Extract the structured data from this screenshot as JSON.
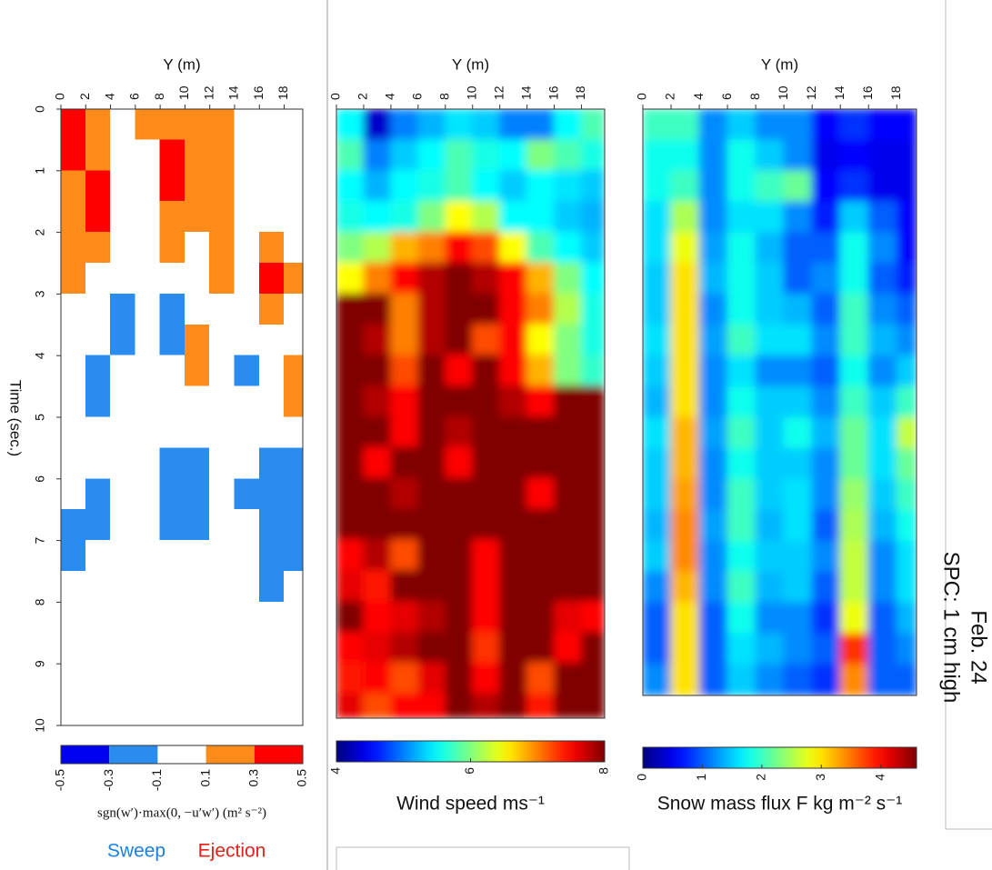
{
  "chart_data": [
    {
      "type": "heatmap",
      "xlabel": "Y (m)",
      "ylabel": "Time (sec.)",
      "x": [
        0,
        2,
        4,
        6,
        8,
        10,
        12,
        14,
        16,
        18
      ],
      "y": [
        0,
        0.5,
        1,
        1.5,
        2,
        2.5,
        3,
        3.5,
        4,
        4.5,
        5,
        5.5,
        6,
        6.5,
        7,
        7.5,
        8,
        8.5,
        9,
        9.5
      ],
      "xlim": [
        0,
        19.5
      ],
      "ylim": [
        0,
        10
      ],
      "xticks": [
        0,
        2,
        4,
        6,
        8,
        10,
        12,
        14,
        16,
        18
      ],
      "yticks": [
        0,
        1,
        2,
        3,
        4,
        5,
        6,
        7,
        8,
        9,
        10
      ],
      "z": [
        [
          0.4,
          0.2,
          0,
          0.2,
          0.2,
          0.2,
          0.2,
          0,
          0,
          0
        ],
        [
          0.4,
          0.2,
          0,
          0,
          0.4,
          0.2,
          0.2,
          0,
          0,
          0
        ],
        [
          0.2,
          0.4,
          0,
          0,
          0.4,
          0.2,
          0.2,
          0,
          0,
          0
        ],
        [
          0.2,
          0.4,
          0,
          0,
          0.2,
          0.2,
          0.2,
          0,
          0,
          0
        ],
        [
          0.2,
          0.2,
          0,
          0,
          0.2,
          0,
          0.2,
          0,
          0.2,
          0
        ],
        [
          0.2,
          0,
          0,
          0,
          0,
          0,
          0.2,
          0,
          0.4,
          0.2
        ],
        [
          0,
          0,
          -0.2,
          0,
          -0.2,
          0,
          0,
          0,
          0.2,
          0
        ],
        [
          0,
          0,
          -0.2,
          0,
          -0.2,
          0.2,
          0,
          0,
          0,
          0
        ],
        [
          0,
          -0.2,
          0,
          0,
          0,
          0.2,
          0,
          -0.2,
          0,
          0.2
        ],
        [
          0,
          -0.2,
          0,
          0,
          0,
          0,
          0,
          0,
          0,
          0.2
        ],
        [
          0,
          0,
          0,
          0,
          0,
          0,
          0,
          0,
          0,
          0
        ],
        [
          0,
          0,
          0,
          0,
          -0.2,
          -0.2,
          0,
          0,
          -0.2,
          -0.2
        ],
        [
          0,
          -0.2,
          0,
          0,
          -0.2,
          -0.2,
          0,
          -0.2,
          -0.2,
          -0.2
        ],
        [
          -0.2,
          -0.2,
          0,
          0,
          -0.2,
          -0.2,
          0,
          0,
          -0.2,
          -0.2
        ],
        [
          -0.2,
          0,
          0,
          0,
          0,
          0,
          0,
          0,
          -0.2,
          -0.2
        ],
        [
          0,
          0,
          0,
          0,
          0,
          0,
          0,
          0,
          -0.2,
          0
        ],
        [
          0,
          0,
          0,
          0,
          0,
          0,
          0,
          0,
          0,
          0
        ],
        [
          0,
          0,
          0,
          0,
          0,
          0,
          0,
          0,
          0,
          0
        ],
        [
          0,
          0,
          0,
          0,
          0,
          0,
          0,
          0,
          0,
          0
        ],
        [
          0,
          0,
          0,
          0,
          0,
          0,
          0,
          0,
          0,
          0
        ]
      ],
      "colorbar": {
        "label": "sgn(w′)·max(0, −u′w′) (m² s⁻²)",
        "levels": [
          -0.5,
          -0.3,
          -0.1,
          0.1,
          0.3,
          0.5
        ],
        "colors": [
          "#0000f0",
          "#2b8cf0",
          "#ffffff",
          "#ff8c1a",
          "#ff0000"
        ]
      },
      "annotations": [
        "Sweep",
        "Ejection"
      ]
    },
    {
      "type": "heatmap",
      "xlabel": "Y (m)",
      "x": [
        0,
        2,
        4,
        6,
        8,
        10,
        12,
        14,
        16,
        18
      ],
      "y": [
        0,
        0.5,
        1,
        1.5,
        2,
        2.5,
        3,
        3.5,
        4,
        4.5,
        5,
        5.5,
        6,
        6.5,
        7,
        7.5,
        8,
        8.5,
        9,
        9.5
      ],
      "xlim": [
        0,
        19.7
      ],
      "ylim": [
        0,
        9.9
      ],
      "xticks": [
        0,
        2,
        4,
        6,
        8,
        10,
        12,
        14,
        16,
        18
      ],
      "z": [
        [
          5.5,
          4.3,
          5,
          5.2,
          5.4,
          5.3,
          5,
          5,
          5.5,
          5.8
        ],
        [
          5.8,
          5,
          5.3,
          5.5,
          5.8,
          5.6,
          5.5,
          6,
          5.8,
          5.6
        ],
        [
          5.5,
          5.2,
          5.5,
          5.6,
          5.8,
          5.5,
          5.3,
          5.5,
          5.4,
          5.3
        ],
        [
          5.6,
          5.5,
          5.6,
          6,
          6.5,
          6.2,
          5.5,
          5.5,
          5.3,
          5.2
        ],
        [
          6,
          6.2,
          6.8,
          7,
          7.5,
          7.2,
          6.5,
          5.8,
          5.5,
          5.3
        ],
        [
          6.5,
          7,
          7.5,
          7.8,
          8,
          7.8,
          7.5,
          6.8,
          6,
          5.5
        ],
        [
          8,
          8,
          7,
          7.8,
          8,
          8,
          7.5,
          7,
          6.2,
          5.6
        ],
        [
          8,
          7.8,
          7,
          7.8,
          8,
          7.2,
          7.5,
          6.5,
          6,
          5.6
        ],
        [
          8,
          8,
          7.2,
          8,
          7.5,
          8,
          7.5,
          6.8,
          6,
          5.7
        ],
        [
          8,
          7.8,
          7.5,
          8,
          8,
          8,
          7.8,
          7.5,
          8,
          8
        ],
        [
          8,
          8,
          7.5,
          8,
          7.8,
          8,
          8,
          8,
          8,
          8
        ],
        [
          8,
          7.5,
          8,
          8,
          7.5,
          8,
          8,
          8,
          8,
          8
        ],
        [
          8,
          8,
          7.8,
          8,
          8,
          8,
          8,
          7.5,
          8,
          8
        ],
        [
          8,
          8,
          8,
          8,
          8,
          8,
          8,
          8,
          8,
          8
        ],
        [
          7.5,
          7.8,
          7.2,
          8,
          8,
          7.5,
          8,
          8,
          8,
          8
        ],
        [
          7.6,
          7.4,
          8,
          8,
          8,
          7.5,
          8,
          8,
          8,
          8
        ],
        [
          8,
          7.5,
          7.6,
          7.8,
          8,
          7.5,
          8,
          8,
          7.6,
          7.5
        ],
        [
          7.5,
          7.6,
          7.8,
          8,
          8,
          7.3,
          8,
          8,
          7.5,
          8
        ],
        [
          7.4,
          7.5,
          7.2,
          7.6,
          8,
          7.5,
          8,
          7.2,
          8,
          8
        ],
        [
          7.6,
          7.2,
          7.5,
          7.5,
          8,
          7.8,
          8,
          7.4,
          8,
          8
        ]
      ],
      "colorbar": {
        "label": "Wind speed ms⁻¹",
        "colormap": "jet",
        "lim": [
          4,
          8
        ],
        "ticks": [
          4,
          6,
          8
        ]
      }
    },
    {
      "type": "heatmap",
      "xlabel": "Y (m)",
      "x": [
        0,
        2,
        4,
        6,
        8,
        10,
        12,
        14,
        16,
        18
      ],
      "y": [
        0,
        0.5,
        1,
        1.5,
        2,
        2.5,
        3,
        3.5,
        4,
        4.5,
        5,
        5.5,
        6,
        6.5,
        7,
        7.5,
        8,
        8.5,
        9
      ],
      "xlim": [
        0,
        19.4
      ],
      "ylim": [
        0,
        9.5
      ],
      "xticks": [
        0,
        2,
        4,
        6,
        8,
        10,
        12,
        14,
        16,
        18
      ],
      "z": [
        [
          2,
          2,
          1.2,
          1.5,
          1.2,
          1.2,
          0.6,
          0.8,
          0.6,
          0.6
        ],
        [
          1.8,
          1.8,
          1.2,
          1.8,
          1.5,
          1.2,
          0.5,
          0.6,
          0.5,
          0.5
        ],
        [
          1.8,
          2,
          1.2,
          1.8,
          2,
          2.2,
          0.6,
          0.8,
          0.5,
          0.5
        ],
        [
          1.6,
          2.5,
          1.2,
          1.6,
          1.6,
          1.2,
          0.7,
          1.5,
          1,
          0.6
        ],
        [
          1.6,
          2.8,
          1.3,
          1.8,
          1.4,
          1,
          1,
          1.8,
          1.2,
          0.6
        ],
        [
          1.5,
          3,
          1.4,
          1.8,
          1.5,
          1,
          1.2,
          1.8,
          1,
          0.7
        ],
        [
          1.5,
          3,
          1.2,
          1.8,
          1.5,
          1.4,
          1,
          2,
          1.2,
          1
        ],
        [
          1.6,
          3,
          1.3,
          2,
          1.6,
          1.6,
          1.2,
          2,
          1.4,
          1.2
        ],
        [
          1.5,
          3,
          1.2,
          1.6,
          1.2,
          1.2,
          1,
          1.8,
          1.2,
          1.5
        ],
        [
          1.4,
          3,
          1.2,
          1.8,
          1.5,
          1.5,
          1.2,
          2,
          1.5,
          2
        ],
        [
          1.6,
          3.2,
          1.3,
          2,
          1.5,
          1.8,
          1.4,
          2.2,
          1.6,
          2.6
        ],
        [
          1.5,
          3.2,
          1.2,
          1.8,
          1.5,
          1.5,
          1.2,
          2.2,
          1.6,
          2.2
        ],
        [
          1.5,
          3.3,
          1.2,
          2,
          1.5,
          1.6,
          1.2,
          2.4,
          1.5,
          2
        ],
        [
          1.4,
          3.4,
          1.3,
          2,
          1.4,
          1.6,
          1,
          2.5,
          1.4,
          1.8
        ],
        [
          1.5,
          3.4,
          1.2,
          1.8,
          1.5,
          1.5,
          1.2,
          2.6,
          1.2,
          1.6
        ],
        [
          1.2,
          3.2,
          1.2,
          2,
          1.4,
          1.5,
          1,
          2.6,
          1.2,
          1.6
        ],
        [
          1,
          3,
          1,
          1.8,
          1.2,
          1.2,
          0.8,
          2.8,
          1,
          1.4
        ],
        [
          1,
          3,
          1,
          1.6,
          1.4,
          1.2,
          1,
          3.8,
          1,
          1.2
        ],
        [
          1.2,
          3,
          1,
          1.5,
          1.2,
          1,
          0.8,
          3.4,
          1,
          1
        ]
      ],
      "colorbar": {
        "label": "Snow mass flux F kg m⁻² s⁻¹",
        "colormap": "jet",
        "lim": [
          0,
          4.6
        ],
        "ticks": [
          0,
          1,
          2,
          3,
          4
        ]
      },
      "annotations": [
        "Feb. 24",
        "SPC: 1 cm high"
      ]
    }
  ]
}
